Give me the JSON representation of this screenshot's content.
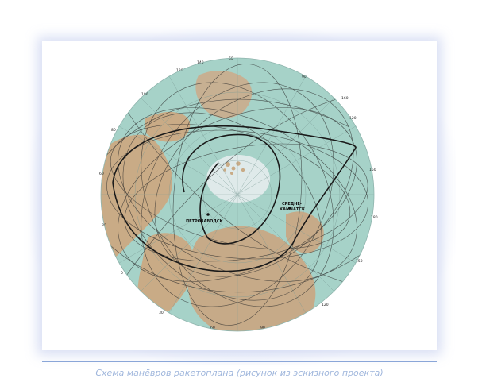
{
  "caption": "Схема манёвров ракетоплана (рисунок из эскизного проекта)",
  "map": {
    "labels": {
      "petrozavodsk": "ПЕТРОЗАВОДСК",
      "srednekamchatsk_1": "СРЕДНЕ-",
      "srednekamchatsk_2": "КАМЧАТСК"
    },
    "colors": {
      "ocean": "#a6d2c8",
      "land": "#c9ab86",
      "ice": "#e9eef0",
      "trajectory": "#1a1a1a"
    },
    "rim_degrees": [
      "60",
      "90",
      "120",
      "150",
      "180",
      "150",
      "120",
      "90",
      "60",
      "30",
      "0",
      "30",
      "60",
      "80",
      "100",
      "120",
      "140",
      "160"
    ]
  }
}
